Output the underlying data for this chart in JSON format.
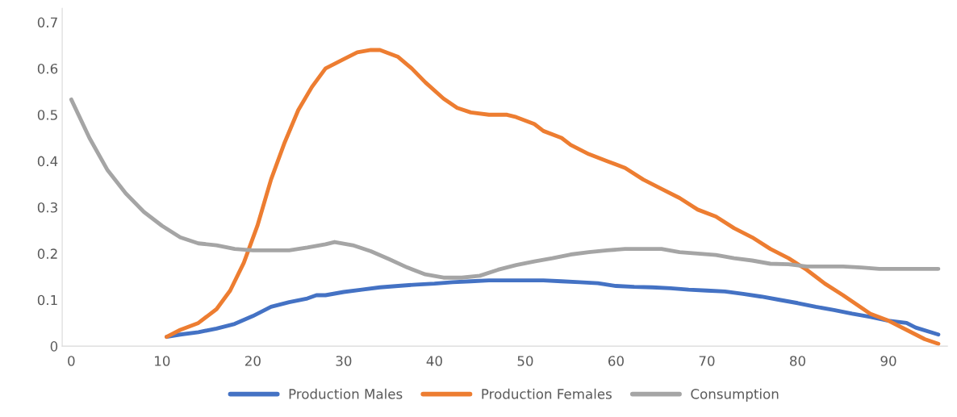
{
  "chart_data": {
    "type": "line",
    "xlim": [
      -1,
      96.5
    ],
    "xticks": [
      0,
      10,
      20,
      30,
      40,
      50,
      60,
      70,
      80,
      90
    ],
    "ylim": [
      0,
      0.73
    ],
    "yticks": [
      0,
      0.1,
      0.2,
      0.3,
      0.4,
      0.5,
      0.6,
      0.7
    ],
    "grid": false,
    "legend": "bottom",
    "marker": "none",
    "line_style": "solid",
    "series": [
      {
        "name": "Production Males",
        "color": "#4472c4",
        "x": [
          10.5,
          12,
          14,
          16,
          18,
          20,
          22,
          24,
          26,
          27,
          28,
          30,
          32,
          34,
          36,
          38,
          40,
          42,
          44,
          46,
          48,
          50,
          52,
          54,
          56,
          58,
          60,
          62,
          64,
          66,
          68,
          70,
          72,
          74,
          76,
          78,
          80,
          82,
          84,
          86,
          88,
          90,
          92,
          93,
          95.5
        ],
        "values": [
          0.02,
          0.025,
          0.03,
          0.038,
          0.048,
          0.065,
          0.085,
          0.095,
          0.103,
          0.11,
          0.11,
          0.117,
          0.122,
          0.127,
          0.13,
          0.133,
          0.135,
          0.138,
          0.14,
          0.142,
          0.142,
          0.142,
          0.142,
          0.14,
          0.138,
          0.136,
          0.13,
          0.128,
          0.127,
          0.125,
          0.122,
          0.12,
          0.118,
          0.113,
          0.107,
          0.1,
          0.093,
          0.085,
          0.078,
          0.07,
          0.063,
          0.055,
          0.05,
          0.04,
          0.025
        ]
      },
      {
        "name": "Production Females",
        "color": "#ed7d31",
        "x": [
          10.5,
          12,
          14,
          16,
          17.5,
          19,
          20.5,
          22,
          23.5,
          25,
          26.5,
          28,
          30,
          31.5,
          33,
          34,
          36,
          37.5,
          39,
          41,
          42.5,
          44,
          46,
          48,
          49,
          51,
          52,
          54,
          55,
          57,
          59,
          61,
          63,
          65,
          67,
          69,
          71,
          73,
          75,
          77,
          79,
          81,
          83,
          85,
          86.5,
          88,
          90,
          92,
          94,
          95.5
        ],
        "values": [
          0.02,
          0.035,
          0.05,
          0.08,
          0.12,
          0.18,
          0.26,
          0.36,
          0.44,
          0.51,
          0.56,
          0.6,
          0.62,
          0.635,
          0.64,
          0.64,
          0.625,
          0.6,
          0.57,
          0.535,
          0.515,
          0.505,
          0.5,
          0.5,
          0.495,
          0.48,
          0.465,
          0.45,
          0.435,
          0.415,
          0.4,
          0.385,
          0.36,
          0.34,
          0.32,
          0.295,
          0.28,
          0.255,
          0.235,
          0.21,
          0.19,
          0.165,
          0.135,
          0.11,
          0.09,
          0.07,
          0.055,
          0.035,
          0.015,
          0.005
        ]
      },
      {
        "name": "Consumption",
        "color": "#a5a5a5",
        "x": [
          0,
          2,
          4,
          6,
          8,
          10,
          12,
          14,
          16,
          18,
          20,
          22,
          24,
          26,
          28,
          29,
          31,
          33,
          35,
          37,
          39,
          41,
          43,
          45,
          47,
          49,
          51,
          53,
          55,
          57,
          59,
          61,
          63,
          65,
          67,
          69,
          71,
          73,
          75,
          77,
          79,
          81,
          83,
          85,
          87,
          89,
          95.5
        ],
        "values": [
          0.533,
          0.45,
          0.38,
          0.33,
          0.29,
          0.26,
          0.235,
          0.222,
          0.218,
          0.21,
          0.207,
          0.207,
          0.207,
          0.213,
          0.22,
          0.225,
          0.218,
          0.205,
          0.188,
          0.17,
          0.155,
          0.148,
          0.148,
          0.152,
          0.165,
          0.175,
          0.183,
          0.19,
          0.198,
          0.203,
          0.207,
          0.21,
          0.21,
          0.21,
          0.203,
          0.2,
          0.197,
          0.19,
          0.185,
          0.178,
          0.177,
          0.172,
          0.172,
          0.172,
          0.17,
          0.167,
          0.167
        ]
      }
    ]
  }
}
